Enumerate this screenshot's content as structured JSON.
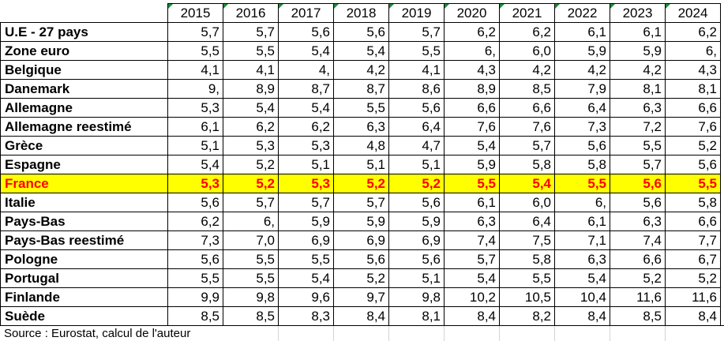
{
  "table": {
    "years": [
      "2015",
      "2016",
      "2017",
      "2018",
      "2019",
      "2020",
      "2021",
      "2022",
      "2023",
      "2024"
    ],
    "rows": [
      {
        "country": "U.E - 27 pays",
        "values": [
          "5,7",
          "5,7",
          "5,6",
          "5,6",
          "5,7",
          "6,2",
          "6,2",
          "6,1",
          "6,1",
          "6,2"
        ]
      },
      {
        "country": "Zone euro",
        "values": [
          "5,5",
          "5,5",
          "5,4",
          "5,4",
          "5,5",
          "6,",
          "6,0",
          "5,9",
          "5,9",
          "6,"
        ]
      },
      {
        "country": "Belgique",
        "values": [
          "4,1",
          "4,1",
          "4,",
          "4,2",
          "4,1",
          "4,3",
          "4,2",
          "4,2",
          "4,2",
          "4,3"
        ]
      },
      {
        "country": "Danemark",
        "values": [
          "9,",
          "8,9",
          "8,7",
          "8,7",
          "8,6",
          "8,9",
          "8,5",
          "7,9",
          "8,1",
          "8,1"
        ]
      },
      {
        "country": "Allemagne",
        "values": [
          "5,3",
          "5,4",
          "5,4",
          "5,5",
          "5,6",
          "6,6",
          "6,6",
          "6,4",
          "6,3",
          "6,6"
        ]
      },
      {
        "country": "Allemagne reestimé",
        "values": [
          "6,1",
          "6,2",
          "6,2",
          "6,3",
          "6,4",
          "7,6",
          "7,6",
          "7,3",
          "7,2",
          "7,6"
        ]
      },
      {
        "country": "Grèce",
        "values": [
          "5,1",
          "5,3",
          "5,3",
          "4,8",
          "4,7",
          "5,4",
          "5,7",
          "5,6",
          "5,5",
          "5,2"
        ]
      },
      {
        "country": "Espagne",
        "values": [
          "5,4",
          "5,2",
          "5,1",
          "5,1",
          "5,1",
          "5,9",
          "5,8",
          "5,8",
          "5,7",
          "5,6"
        ]
      },
      {
        "country": "France",
        "values": [
          "5,3",
          "5,2",
          "5,3",
          "5,2",
          "5,2",
          "5,5",
          "5,4",
          "5,5",
          "5,6",
          "5,5"
        ],
        "highlight": true
      },
      {
        "country": "Italie",
        "values": [
          "5,6",
          "5,7",
          "5,7",
          "5,7",
          "5,6",
          "6,1",
          "6,0",
          "6,",
          "5,6",
          "5,8"
        ]
      },
      {
        "country": "Pays-Bas",
        "values": [
          "6,2",
          "6,",
          "5,9",
          "5,9",
          "5,9",
          "6,3",
          "6,4",
          "6,1",
          "6,3",
          "6,6"
        ]
      },
      {
        "country": "Pays-Bas reestimé",
        "values": [
          "7,3",
          "7,0",
          "6,9",
          "6,9",
          "6,9",
          "7,4",
          "7,5",
          "7,1",
          "7,4",
          "7,7"
        ]
      },
      {
        "country": "Pologne",
        "values": [
          "5,6",
          "5,5",
          "5,5",
          "5,6",
          "5,6",
          "5,7",
          "5,8",
          "6,3",
          "6,6",
          "6,7"
        ]
      },
      {
        "country": "Portugal",
        "values": [
          "5,5",
          "5,5",
          "5,4",
          "5,2",
          "5,1",
          "5,4",
          "5,5",
          "5,4",
          "5,2",
          "5,2"
        ]
      },
      {
        "country": "Finlande",
        "values": [
          "9,9",
          "9,8",
          "9,6",
          "9,7",
          "9,8",
          "10,2",
          "10,5",
          "10,4",
          "11,6",
          "11,6"
        ]
      },
      {
        "country": "Suède",
        "values": [
          "8,5",
          "8,5",
          "8,3",
          "8,4",
          "8,1",
          "8,4",
          "8,2",
          "8,4",
          "8,5",
          "8,4"
        ]
      }
    ]
  },
  "source": "Source : Eurostat, calcul de l'auteur",
  "colors": {
    "highlight_background": "#ffff00",
    "highlight_text": "#ff0000",
    "header_marker": "#1e8a3c"
  },
  "icons": {
    "header_marker": "green-triangle-corner-icon"
  }
}
